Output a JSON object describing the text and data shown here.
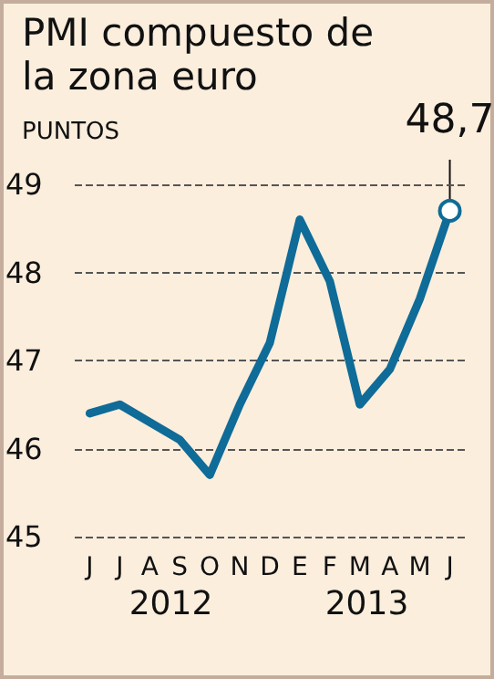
{
  "chart_data": {
    "type": "line",
    "title": "PMI compuesto de la zona euro",
    "ylabel": "PUNTOS",
    "categories": [
      "J",
      "J",
      "A",
      "S",
      "O",
      "N",
      "D",
      "E",
      "F",
      "M",
      "A",
      "M",
      "J"
    ],
    "series": [
      {
        "color": "#0f6b97",
        "values": [
          46.4,
          46.5,
          46.3,
          46.1,
          45.7,
          46.5,
          47.2,
          48.6,
          47.9,
          46.5,
          46.9,
          47.7,
          48.7
        ],
        "value_labels": [
          null,
          null,
          null,
          null,
          null,
          null,
          null,
          null,
          null,
          null,
          null,
          null,
          "48,7"
        ]
      }
    ],
    "annotations": [
      "2012",
      "2013"
    ],
    "ylim": [
      45,
      49
    ],
    "yticks": [
      45,
      46,
      47,
      48,
      49
    ],
    "grid": "y"
  }
}
